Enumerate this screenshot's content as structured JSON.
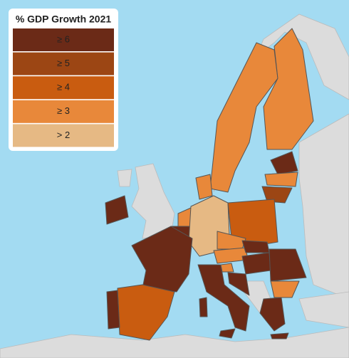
{
  "legend": {
    "title": "% GDP Growth 2021",
    "items": [
      {
        "label": "≥ 6",
        "color": "#6b2a17"
      },
      {
        "label": "≥ 5",
        "color": "#9c4614"
      },
      {
        "label": "≥ 4",
        "color": "#c95c10"
      },
      {
        "label": "≥ 3",
        "color": "#e8883a"
      },
      {
        "label": "> 2",
        "color": "#e6b984"
      }
    ]
  }
}
